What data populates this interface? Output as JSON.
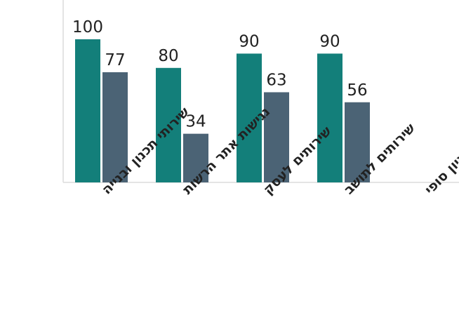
{
  "chart_data": {
    "type": "bar",
    "categories": [
      "שירותי תכנון ובנייה",
      "נגישות אתר הרשות",
      "שירותים לעסק",
      "שירותים לתושב",
      "ציון סופי"
    ],
    "series": [
      {
        "color": "#137f7a",
        "values": [
          100,
          80,
          90,
          90,
          null
        ]
      },
      {
        "color": "#4b6375",
        "values": [
          77,
          34,
          63,
          56,
          null
        ]
      }
    ],
    "ylim": [
      0,
      100
    ],
    "grid": false,
    "legend": "none",
    "title": "",
    "xlabel": "",
    "ylabel": ""
  }
}
